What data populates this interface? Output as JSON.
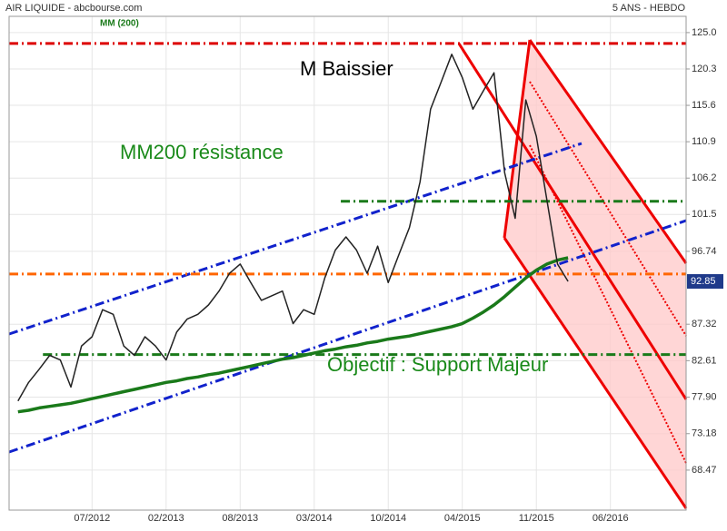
{
  "chart_data": {
    "type": "line",
    "title": "AIR LIQUIDE - abcbourse.com",
    "subtitle": "5 ANS - HEBDO",
    "annotations": [
      "M Baissier",
      "MM200 résistance",
      "Objectif : Support Majeur"
    ],
    "categories": [
      null,
      null,
      null,
      null,
      null,
      null,
      null,
      "07/2012",
      null,
      null,
      null,
      null,
      null,
      null,
      "02/2013",
      null,
      null,
      null,
      null,
      null,
      null,
      "08/2013",
      null,
      null,
      null,
      null,
      null,
      null,
      "03/2014",
      null,
      null,
      null,
      null,
      null,
      null,
      "10/2014",
      null,
      null,
      null,
      null,
      null,
      null,
      "04/2015",
      null,
      null,
      null,
      null,
      null,
      null,
      "11/2015",
      null,
      null,
      null,
      null,
      null,
      null,
      "06/2016",
      null,
      null,
      null,
      null,
      null,
      null,
      null
    ],
    "series": [
      {
        "color": "#222222",
        "values": [
          77.4,
          79.8,
          81.5,
          83.3,
          82.7,
          79.2,
          84.5,
          85.7,
          89.2,
          88.6,
          84.5,
          83.3,
          85.7,
          84.5,
          82.7,
          86.3,
          88.0,
          88.6,
          89.8,
          91.6,
          93.9,
          95.1,
          92.7,
          90.4,
          91.0,
          91.6,
          87.4,
          89.2,
          88.6,
          93.3,
          96.9,
          98.6,
          96.9,
          93.9,
          97.4,
          92.7,
          96.3,
          99.8,
          105.7,
          115.1,
          118.6,
          122.2,
          119.2,
          115.1,
          117.5,
          119.8,
          106.9,
          101.0,
          116.3,
          111.6,
          103.3,
          95.1,
          92.85,
          null,
          null,
          null,
          null,
          null,
          null,
          null,
          null,
          null,
          null,
          null
        ]
      },
      {
        "name": "MM (200)",
        "color": "#1a7a1a",
        "values": [
          76.0,
          76.2,
          76.5,
          76.7,
          76.9,
          77.1,
          77.4,
          77.7,
          78.0,
          78.3,
          78.6,
          78.9,
          79.2,
          79.5,
          79.8,
          80.0,
          80.3,
          80.5,
          80.8,
          81.0,
          81.3,
          81.6,
          81.9,
          82.2,
          82.5,
          82.8,
          83.0,
          83.3,
          83.6,
          83.9,
          84.1,
          84.4,
          84.6,
          84.9,
          85.1,
          85.4,
          85.6,
          85.8,
          86.1,
          86.4,
          86.7,
          87.0,
          87.4,
          88.1,
          88.9,
          89.8,
          90.9,
          92.1,
          93.3,
          94.3,
          95.1,
          95.6,
          95.9,
          null,
          null,
          null,
          null,
          null,
          null,
          null,
          null,
          null,
          null,
          null
        ]
      }
    ],
    "levels": [
      {
        "value": 123.6,
        "color": "#dd0000"
      },
      {
        "value": 103.2,
        "color": "#1a7a1a"
      },
      {
        "value": 93.8,
        "color": "#ff6600"
      },
      {
        "value": 83.4,
        "color": "#1a7a1a"
      }
    ],
    "ylim": [
      63.3,
      127.1
    ],
    "yticks": [
      {
        "value": 125,
        "label": "125.0"
      },
      120.3,
      115.6,
      110.9,
      106.2,
      101.5,
      96.74,
      87.32,
      82.61,
      {
        "value": 77.9,
        "label": "77.90"
      },
      73.18,
      68.47
    ],
    "grid": true
  }
}
